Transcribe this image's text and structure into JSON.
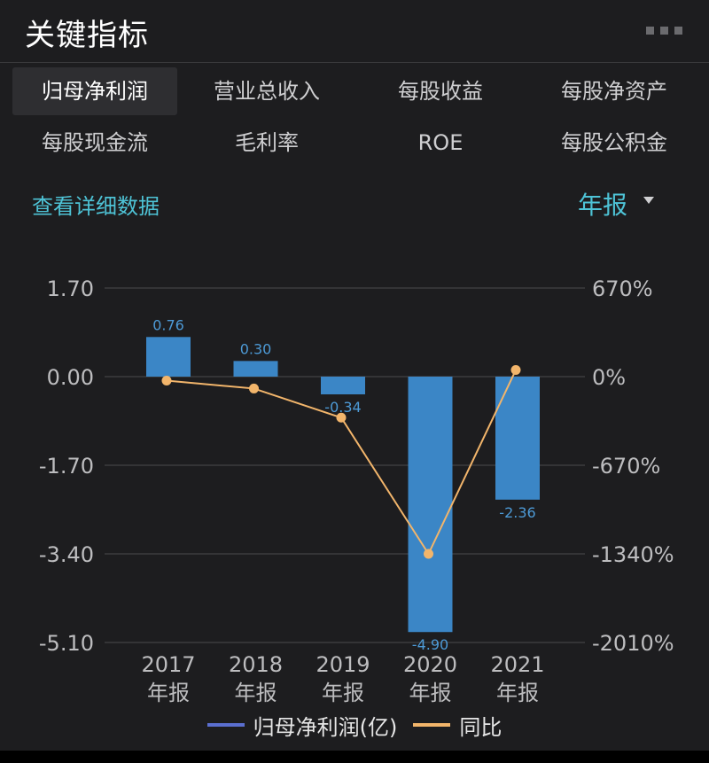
{
  "header": {
    "title": "关键指标",
    "more_icon": "more-horizontal-icon"
  },
  "tabs": [
    {
      "label": "归母净利润",
      "active": true
    },
    {
      "label": "营业总收入"
    },
    {
      "label": "每股收益"
    },
    {
      "label": "每股净资产"
    },
    {
      "label": "每股现金流"
    },
    {
      "label": "毛利率"
    },
    {
      "label": "ROE"
    },
    {
      "label": "每股公积金"
    }
  ],
  "controls": {
    "detail_link": "查看详细数据",
    "period": "年报",
    "period_icon": "caret-down-icon"
  },
  "colors": {
    "accent": "#4ec3d6",
    "bar": "#3b86c6",
    "line": "#f2b56b",
    "legend_bar": "#5b6fd0"
  },
  "chart_data": {
    "type": "bar",
    "categories": [
      "2017\n年报",
      "2018\n年报",
      "2019\n年报",
      "2020\n年报",
      "2021\n年报"
    ],
    "series": [
      {
        "name": "归母净利润(亿)",
        "type": "bar",
        "axis": "left",
        "values": [
          0.76,
          0.3,
          -0.34,
          -4.9,
          -2.36
        ],
        "labels": [
          "0.76",
          "0.30",
          "-0.34",
          "-4.90",
          "-2.36"
        ]
      },
      {
        "name": "同比",
        "type": "line",
        "axis": "right",
        "values": [
          -30,
          -90,
          -310,
          -1340,
          50
        ]
      }
    ],
    "y_left": {
      "ticks": [
        "1.70",
        "0.00",
        "-1.70",
        "-3.40",
        "-5.10"
      ],
      "range": [
        -5.1,
        1.7
      ]
    },
    "y_right": {
      "ticks": [
        "670%",
        "0%",
        "-670%",
        "-1340%",
        "-2010%"
      ],
      "range": [
        -2010,
        670
      ]
    },
    "grid": true,
    "legend": "bottom"
  }
}
